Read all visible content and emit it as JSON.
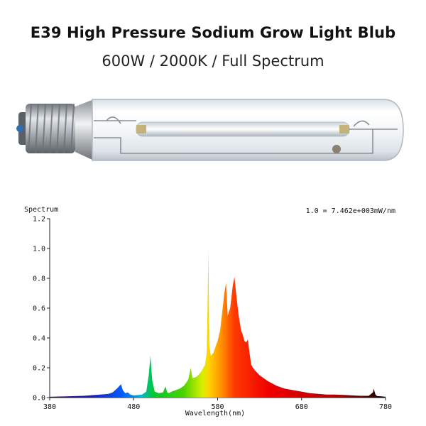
{
  "header": {
    "title": "E39 High Pressure Sodium Grow Light Blub",
    "subtitle": "600W / 2000K / Full Spectrum"
  },
  "bulb_image": {
    "icon": "hps-lamp-bulb-icon",
    "base_color": "#9ea3a8",
    "glass_color": "#eef3f6"
  },
  "chart_data": {
    "type": "area",
    "ylabel": "Spectrum",
    "xlabel": "Wavelength(nm)",
    "annotation": "1.0 = 7.462e+003mW/nm",
    "xlim": [
      380,
      780
    ],
    "ylim": [
      0,
      1.2
    ],
    "x_ticks": [
      "380",
      "480",
      "580",
      "680",
      "780"
    ],
    "y_ticks": [
      "0.0",
      "0.2",
      "0.4",
      "0.6",
      "0.8",
      "1.0",
      "1.2"
    ],
    "x_tick_values": [
      380,
      480,
      580,
      680,
      780
    ],
    "y_tick_values": [
      0,
      0.2,
      0.4,
      0.6,
      0.8,
      1.0,
      1.2
    ],
    "x": [
      380,
      400,
      420,
      440,
      450,
      455,
      460,
      465,
      467,
      470,
      473,
      476,
      480,
      490,
      495,
      498,
      500,
      502,
      505,
      510,
      515,
      518,
      520,
      522,
      525,
      530,
      535,
      540,
      545,
      548,
      550,
      555,
      560,
      565,
      567,
      568,
      569,
      570,
      572,
      575,
      578,
      580,
      583,
      585,
      588,
      590,
      592,
      595,
      598,
      600,
      602,
      605,
      608,
      610,
      612,
      614,
      616,
      618,
      620,
      622,
      625,
      630,
      640,
      650,
      660,
      670,
      680,
      690,
      700,
      710,
      720,
      730,
      740,
      750,
      760,
      765,
      766,
      767,
      768,
      770,
      775,
      780
    ],
    "y": [
      0.005,
      0.008,
      0.012,
      0.02,
      0.025,
      0.035,
      0.06,
      0.09,
      0.05,
      0.03,
      0.035,
      0.02,
      0.015,
      0.02,
      0.04,
      0.15,
      0.28,
      0.12,
      0.04,
      0.03,
      0.035,
      0.075,
      0.035,
      0.03,
      0.04,
      0.05,
      0.06,
      0.08,
      0.12,
      0.2,
      0.13,
      0.14,
      0.17,
      0.22,
      0.3,
      0.6,
      1.0,
      0.35,
      0.28,
      0.3,
      0.35,
      0.38,
      0.45,
      0.55,
      0.7,
      0.77,
      0.55,
      0.6,
      0.75,
      0.81,
      0.7,
      0.55,
      0.45,
      0.42,
      0.38,
      0.37,
      0.39,
      0.3,
      0.22,
      0.2,
      0.18,
      0.15,
      0.11,
      0.08,
      0.06,
      0.05,
      0.04,
      0.03,
      0.025,
      0.02,
      0.02,
      0.018,
      0.015,
      0.012,
      0.012,
      0.035,
      0.06,
      0.04,
      0.02,
      0.01,
      0.008,
      0.005
    ],
    "grid": false,
    "fill": "visible-spectrum-gradient"
  }
}
